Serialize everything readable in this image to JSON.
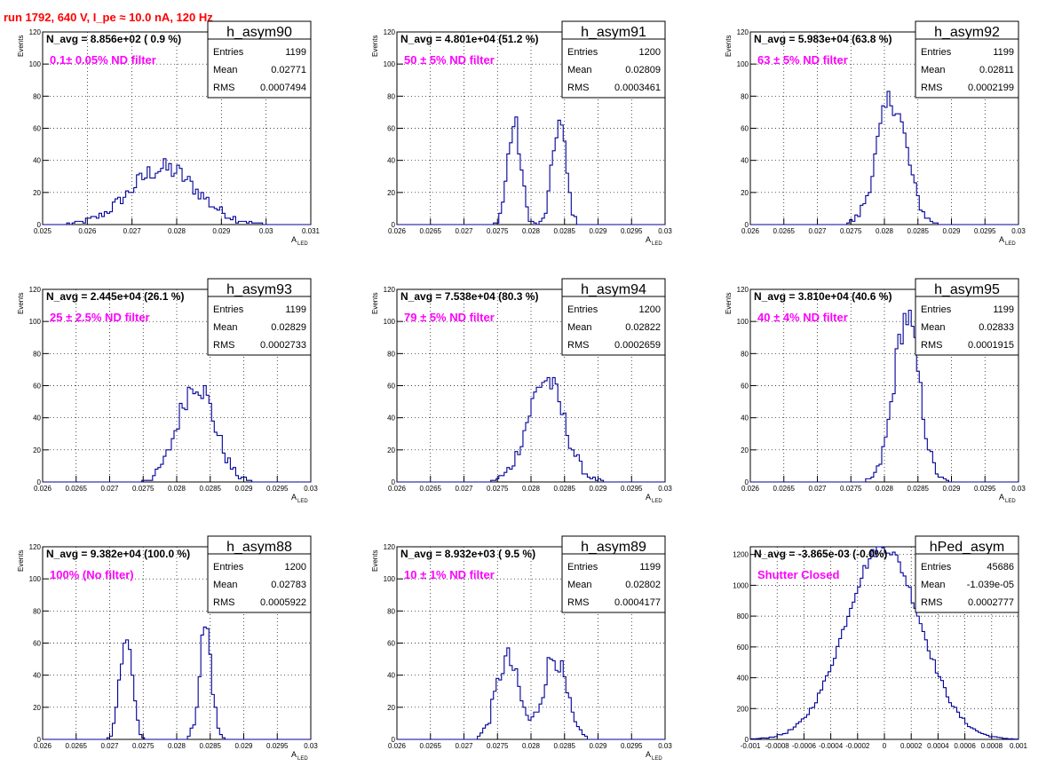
{
  "run_title": "run 1792,   640 V, I_pe ≈ 10.0 nA, 120 Hz",
  "colors": {
    "title": "#ff0000",
    "filter_text": "#ff00ff",
    "histogram_line": "#000099",
    "grid": "#000000"
  },
  "chart_data": [
    {
      "type": "histogram",
      "name": "h_asym90",
      "navg": "N_avg = 8.856e+02 ( 0.9 %)",
      "filter": "0.1± 0.05% ND filter",
      "stats": {
        "Entries": "1199",
        "Mean": "0.02771",
        "RMS": "0.0007494"
      },
      "ylabel": "Events",
      "xlabel": "A",
      "xlabel_sub": "LED",
      "xlim": [
        0.025,
        0.031
      ],
      "ylim": [
        0,
        120
      ],
      "xticks": [
        "0.025",
        "0.026",
        "0.027",
        "0.028",
        "0.029",
        "0.03",
        "0.031"
      ],
      "yticks": [
        "0",
        "20",
        "40",
        "60",
        "80",
        "100",
        "120"
      ],
      "grid": true,
      "mu": 0.02771,
      "sigma": 0.00075,
      "peak": 35
    },
    {
      "type": "histogram",
      "name": "h_asym91",
      "navg": "N_avg = 4.801e+04 (51.2 %)",
      "filter": "50 ± 5% ND filter",
      "stats": {
        "Entries": "1200",
        "Mean": "0.02809",
        "RMS": "0.0003461"
      },
      "ylabel": "Events",
      "xlabel": "A",
      "xlabel_sub": "LED",
      "xlim": [
        0.026,
        0.03
      ],
      "ylim": [
        0,
        120
      ],
      "xticks": [
        "0.026",
        "0.0265",
        "0.027",
        "0.0275",
        "0.028",
        "0.0285",
        "0.029",
        "0.0295",
        "0.03"
      ],
      "yticks": [
        "0",
        "20",
        "40",
        "60",
        "80",
        "100",
        "120"
      ],
      "grid": true,
      "peaks": [
        {
          "mu": 0.02775,
          "sigma": 0.0001,
          "amp": 62
        },
        {
          "mu": 0.02842,
          "sigma": 0.0001,
          "amp": 64
        }
      ]
    },
    {
      "type": "histogram",
      "name": "h_asym92",
      "navg": "N_avg = 5.983e+04 (63.8 %)",
      "filter": "63 ± 5% ND filter",
      "stats": {
        "Entries": "1199",
        "Mean": "0.02811",
        "RMS": "0.0002199"
      },
      "ylabel": "Events",
      "xlabel": "A",
      "xlabel_sub": "LED",
      "xlim": [
        0.026,
        0.03
      ],
      "ylim": [
        0,
        120
      ],
      "xticks": [
        "0.026",
        "0.0265",
        "0.027",
        "0.0275",
        "0.028",
        "0.0285",
        "0.029",
        "0.0295",
        "0.03"
      ],
      "yticks": [
        "0",
        "20",
        "40",
        "60",
        "80",
        "100",
        "120"
      ],
      "grid": true,
      "mu": 0.02811,
      "sigma": 0.00022,
      "peak": 78
    },
    {
      "type": "histogram",
      "name": "h_asym93",
      "navg": "N_avg = 2.445e+04 (26.1 %)",
      "filter": "25 ± 2.5% ND filter",
      "stats": {
        "Entries": "1199",
        "Mean": "0.02829",
        "RMS": "0.0002733"
      },
      "ylabel": "Events",
      "xlabel": "A",
      "xlabel_sub": "LED",
      "xlim": [
        0.026,
        0.03
      ],
      "ylim": [
        0,
        120
      ],
      "xticks": [
        "0.026",
        "0.0265",
        "0.027",
        "0.0275",
        "0.028",
        "0.0285",
        "0.029",
        "0.0295",
        "0.03"
      ],
      "yticks": [
        "0",
        "20",
        "40",
        "60",
        "80",
        "100",
        "120"
      ],
      "grid": true,
      "mu": 0.02829,
      "sigma": 0.00027,
      "peak": 62
    },
    {
      "type": "histogram",
      "name": "h_asym94",
      "navg": "N_avg = 7.538e+04 (80.3 %)",
      "filter": "79 ± 5% ND filter",
      "stats": {
        "Entries": "1200",
        "Mean": "0.02822",
        "RMS": "0.0002659"
      },
      "ylabel": "Events",
      "xlabel": "A",
      "xlabel_sub": "LED",
      "xlim": [
        0.026,
        0.03
      ],
      "ylim": [
        0,
        120
      ],
      "xticks": [
        "0.026",
        "0.0265",
        "0.027",
        "0.0275",
        "0.028",
        "0.0285",
        "0.029",
        "0.0295",
        "0.03"
      ],
      "yticks": [
        "0",
        "20",
        "40",
        "60",
        "80",
        "100",
        "120"
      ],
      "grid": true,
      "mu": 0.02822,
      "sigma": 0.00027,
      "peak": 64
    },
    {
      "type": "histogram",
      "name": "h_asym95",
      "navg": "N_avg = 3.810e+04 (40.6 %)",
      "filter": "40 ± 4% ND filter",
      "stats": {
        "Entries": "1199",
        "Mean": "0.02833",
        "RMS": "0.0001915"
      },
      "ylabel": "Events",
      "xlabel": "A",
      "xlabel_sub": "LED",
      "xlim": [
        0.026,
        0.03
      ],
      "ylim": [
        0,
        120
      ],
      "xticks": [
        "0.026",
        "0.0265",
        "0.027",
        "0.0275",
        "0.028",
        "0.0285",
        "0.029",
        "0.0295",
        "0.03"
      ],
      "yticks": [
        "0",
        "20",
        "40",
        "60",
        "80",
        "100",
        "120"
      ],
      "grid": true,
      "mu": 0.02833,
      "sigma": 0.00019,
      "peak": 103
    },
    {
      "type": "histogram",
      "name": "h_asym88",
      "navg": "N_avg = 9.382e+04 (100.0 %)",
      "filter": "100% (No filter)",
      "stats": {
        "Entries": "1200",
        "Mean": "0.02783",
        "RMS": "0.0005922"
      },
      "ylabel": "Events",
      "xlabel": "A",
      "xlabel_sub": "LED",
      "xlim": [
        0.026,
        0.03
      ],
      "ylim": [
        0,
        120
      ],
      "xticks": [
        "0.026",
        "0.0265",
        "0.027",
        "0.0275",
        "0.028",
        "0.0285",
        "0.029",
        "0.0295",
        "0.03"
      ],
      "yticks": [
        "0",
        "20",
        "40",
        "60",
        "80",
        "100",
        "120"
      ],
      "grid": true,
      "peaks": [
        {
          "mu": 0.02725,
          "sigma": 9e-05,
          "amp": 70
        },
        {
          "mu": 0.02843,
          "sigma": 9e-05,
          "amp": 70
        }
      ]
    },
    {
      "type": "histogram",
      "name": "h_asym89",
      "navg": "N_avg = 8.932e+03 ( 9.5 %)",
      "filter": "10 ± 1% ND filter",
      "stats": {
        "Entries": "1199",
        "Mean": "0.02802",
        "RMS": "0.0004177"
      },
      "ylabel": "Events",
      "xlabel": "A",
      "xlabel_sub": "LED",
      "xlim": [
        0.026,
        0.03
      ],
      "ylim": [
        0,
        120
      ],
      "xticks": [
        "0.026",
        "0.0265",
        "0.027",
        "0.0275",
        "0.028",
        "0.0285",
        "0.029",
        "0.0295",
        "0.03"
      ],
      "yticks": [
        "0",
        "20",
        "40",
        "60",
        "80",
        "100",
        "120"
      ],
      "grid": true,
      "peaks": [
        {
          "mu": 0.02765,
          "sigma": 0.00017,
          "amp": 50
        },
        {
          "mu": 0.02835,
          "sigma": 0.00017,
          "amp": 52
        }
      ]
    },
    {
      "type": "histogram",
      "name": "hPed_asym",
      "navg": "N_avg = -3.865e-03 (-0.0%)",
      "filter": "Shutter Closed",
      "stats": {
        "Entries": "45686",
        "Mean": "-1.039e-05",
        "RMS": "0.0002777"
      },
      "ylabel": "",
      "xlabel": "",
      "xlabel_sub": "",
      "xlim": [
        -0.001,
        0.001
      ],
      "ylim": [
        0,
        1250
      ],
      "xticks": [
        "-0.001",
        "-0.0008",
        "-0.0006",
        "-0.0004",
        "-0.0002",
        "0",
        "0.0002",
        "0.0004",
        "0.0006",
        "0.0008",
        "0.001"
      ],
      "yticks": [
        "0",
        "200",
        "400",
        "600",
        "800",
        "1000",
        "1200"
      ],
      "grid": true,
      "mu": -1e-05,
      "sigma": 0.00028,
      "peak": 1250
    }
  ]
}
